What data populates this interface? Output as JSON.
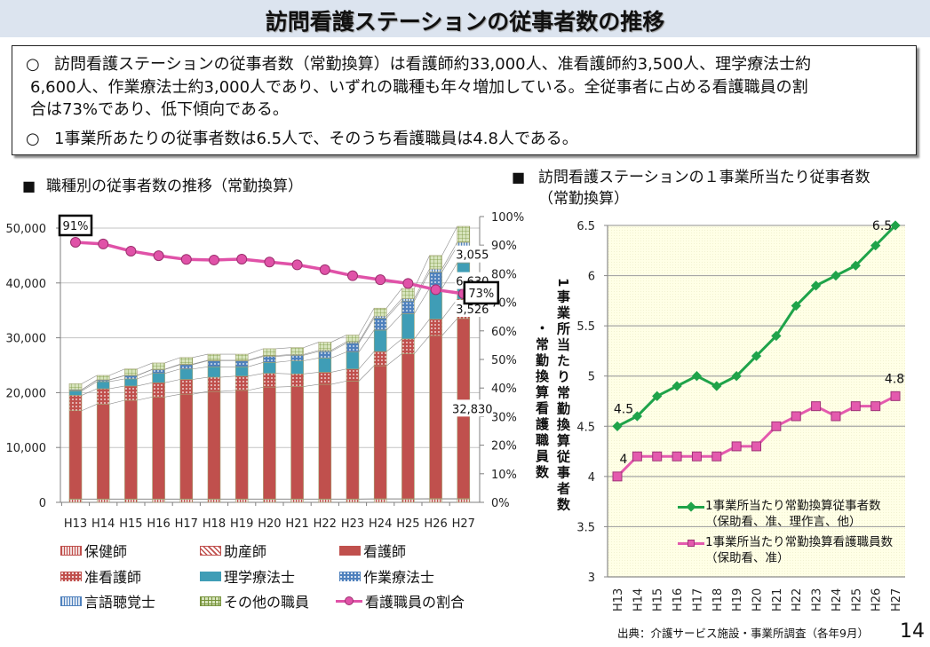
{
  "header": {
    "title": "訪問看護ステーションの従事者数の推移"
  },
  "summary": {
    "bullet_symbol": "○",
    "points": [
      {
        "lines": [
          "訪問看護ステーションの従事者数（常勤換算）は看護師約33,000人、准看護師約3,500人、理学療法士約",
          "6,600人、作業療法士約3,000人であり、いずれの職種も年々増加している。全従事者に占める看護職員の割",
          "合は73%であり、低下傾向である。"
        ]
      },
      {
        "lines": [
          "1事業所あたりの従事者数は6.5人で、そのうち看護職員は4.8人である。"
        ]
      }
    ]
  },
  "left_panel": {
    "heading_marker": "■",
    "heading": "職種別の従事者数の推移（常勤換算）"
  },
  "right_panel": {
    "heading_marker": "■",
    "heading_lines": [
      "訪問看護ステーションの１事業所当たり従事者数",
      "（常勤換算）"
    ]
  },
  "footer": {
    "source": "出典：介護サービス施設・事業所調査（各年9月）",
    "page_number": "14"
  },
  "chart_data": [
    {
      "type": "bar",
      "subtype": "stacked-bar-with-line",
      "title": "職種別の従事者数の推移（常勤換算）",
      "categories": [
        "H13",
        "H14",
        "H15",
        "H16",
        "H17",
        "H18",
        "H19",
        "H20",
        "H21",
        "H22",
        "H23",
        "H24",
        "H25",
        "H26",
        "H27"
      ],
      "ylim_left": [
        0,
        50000
      ],
      "yticks_left": [
        "0",
        "10,000",
        "20,000",
        "30,000",
        "40,000",
        "50,000"
      ],
      "ylim_right": [
        0,
        100
      ],
      "yticks_right": [
        "0%",
        "10%",
        "20%",
        "30%",
        "40%",
        "50%",
        "60%",
        "70%",
        "80%",
        "90%",
        "100%"
      ],
      "grid": true,
      "legend": "bottom",
      "series": [
        {
          "name": "保健師",
          "kind": "bar",
          "axis": "left",
          "pattern": "vstripe-red",
          "values": [
            550,
            550,
            550,
            550,
            550,
            550,
            550,
            550,
            550,
            550,
            550,
            580,
            580,
            600,
            600
          ]
        },
        {
          "name": "助産師",
          "kind": "bar",
          "axis": "left",
          "pattern": "diag-red",
          "values": [
            60,
            60,
            60,
            60,
            60,
            60,
            60,
            60,
            60,
            60,
            60,
            70,
            70,
            80,
            80
          ]
        },
        {
          "name": "看護師",
          "kind": "bar",
          "axis": "left",
          "pattern": "solid-red",
          "values": [
            16100,
            17300,
            18000,
            18600,
            19100,
            19600,
            19800,
            20400,
            20500,
            20900,
            21500,
            24250,
            26450,
            29720,
            32830
          ]
        },
        {
          "name": "准看護師",
          "kind": "bar",
          "axis": "left",
          "pattern": "dots-red",
          "values": [
            2800,
            2800,
            2600,
            2600,
            2700,
            2600,
            2600,
            2500,
            2300,
            2200,
            2200,
            2600,
            2700,
            3000,
            3526
          ]
        },
        {
          "name": "理学療法士",
          "kind": "bar",
          "axis": "left",
          "pattern": "solid-teal",
          "values": [
            800,
            1300,
            1300,
            1700,
            1900,
            1900,
            1700,
            2000,
            2400,
            2600,
            3100,
            3900,
            4600,
            5600,
            6630
          ]
        },
        {
          "name": "作業療法士",
          "kind": "bar",
          "axis": "left",
          "pattern": "dots-blue",
          "values": [
            200,
            300,
            600,
            700,
            800,
            1100,
            1100,
            1100,
            1000,
            1200,
            1600,
            2200,
            2300,
            3000,
            3055
          ]
        },
        {
          "name": "言語聴覚士",
          "kind": "bar",
          "axis": "left",
          "pattern": "vstripe-blue",
          "values": [
            20,
            30,
            50,
            60,
            80,
            100,
            100,
            150,
            150,
            200,
            250,
            350,
            450,
            550,
            700
          ]
        },
        {
          "name": "その他の職員",
          "kind": "bar",
          "axis": "left",
          "pattern": "grid-green",
          "values": [
            1100,
            800,
            1150,
            1140,
            1210,
            1100,
            1100,
            1250,
            1240,
            1490,
            1240,
            1450,
            1850,
            2450,
            2900
          ]
        },
        {
          "name": "看護職員の割合",
          "kind": "line",
          "axis": "right",
          "unit": "%",
          "color": "#E052A8",
          "values": [
            91,
            90.4,
            87.9,
            86.3,
            85.0,
            84.8,
            85.1,
            84.1,
            83.1,
            81.4,
            79.3,
            77.9,
            76.6,
            74.4,
            73
          ]
        }
      ],
      "data_labels": [
        {
          "series": 2,
          "category": "H27",
          "text": "32,830"
        },
        {
          "series": 3,
          "category": "H27",
          "text": "3,526"
        },
        {
          "series": 4,
          "category": "H27",
          "text": "6,630"
        },
        {
          "series": 5,
          "category": "H27",
          "text": "3,055"
        }
      ],
      "callouts": [
        {
          "series": 8,
          "category": "H13",
          "text": "91%"
        },
        {
          "series": 8,
          "category": "H27",
          "text": "73%"
        }
      ]
    },
    {
      "type": "line",
      "title": "訪問看護ステーションの１事業所当たり従事者数（常勤換算）",
      "ylabel_lines": [
        "1事業所当たり常勤換算従事者数",
        "・常勤換算看護職員数"
      ],
      "categories": [
        "H13",
        "H14",
        "H15",
        "H16",
        "H17",
        "H18",
        "H19",
        "H20",
        "H21",
        "H22",
        "H23",
        "H24",
        "H25",
        "H26",
        "H27"
      ],
      "ylim": [
        3,
        6.5
      ],
      "yticks": [
        "3",
        "3.5",
        "4",
        "4.5",
        "5",
        "5.5",
        "6",
        "6.5"
      ],
      "grid": true,
      "legend": "bottom-right inside plot",
      "background": "#FFFFE6",
      "series": [
        {
          "name": "1事業所当たり常勤換算従事者数（保助看、准、理作言、他）",
          "marker": "diamond",
          "color": "#1FA34A",
          "values": [
            4.5,
            4.6,
            4.8,
            4.9,
            5.0,
            4.9,
            5.0,
            5.2,
            5.4,
            5.7,
            5.9,
            6.0,
            6.1,
            6.3,
            6.5
          ]
        },
        {
          "name": "1事業所当たり常勤換算看護職員数（保助看、准）",
          "marker": "square",
          "color": "#E45AAE",
          "values": [
            4.0,
            4.2,
            4.2,
            4.2,
            4.2,
            4.2,
            4.3,
            4.3,
            4.5,
            4.6,
            4.7,
            4.6,
            4.7,
            4.7,
            4.8
          ]
        }
      ],
      "data_labels": [
        {
          "series": 0,
          "category": "H13",
          "text": "4.5"
        },
        {
          "series": 0,
          "category": "H27",
          "text": "6.5"
        },
        {
          "series": 1,
          "category": "H13",
          "text": "4"
        },
        {
          "series": 1,
          "category": "H27",
          "text": "4.8"
        }
      ]
    }
  ]
}
